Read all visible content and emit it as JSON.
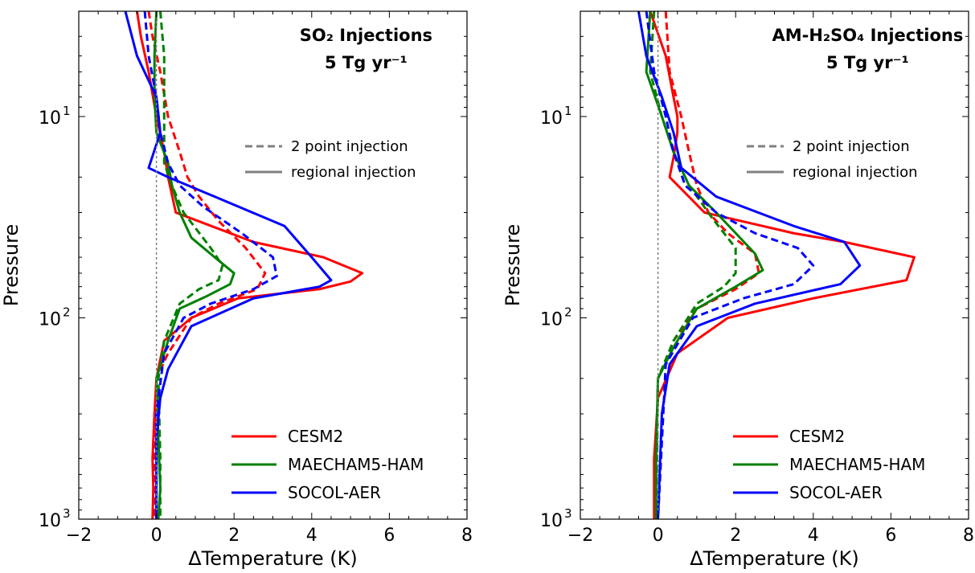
{
  "chart_data": [
    {
      "type": "line",
      "title_line1": "SO₂ Injections",
      "title_line2": "5 Tg yr⁻¹",
      "xlabel": "ΔTemperature (K)",
      "ylabel": "Pressure",
      "xlim": [
        -2,
        8
      ],
      "ylim": [
        1000,
        3
      ],
      "yscale": "log",
      "xticks": [
        -2,
        0,
        2,
        4,
        6,
        8
      ],
      "xtick_labels": [
        "−2",
        "0",
        "2",
        "4",
        "6",
        "8"
      ],
      "ytick_labels": [
        {
          "value": 10,
          "base": "10",
          "exp": "1"
        },
        {
          "value": 100,
          "base": "10",
          "exp": "2"
        },
        {
          "value": 1000,
          "base": "10",
          "exp": "3"
        }
      ],
      "legend_models": [
        {
          "name": "CESM2",
          "color": "#ff0000"
        },
        {
          "name": "MAECHAM5-HAM",
          "color": "#008000"
        },
        {
          "name": "SOCOL-AER",
          "color": "#0000ff"
        }
      ],
      "legend_styles": [
        {
          "name": "2 point injection",
          "style": "dashed",
          "color": "#808080"
        },
        {
          "name": "regional injection",
          "style": "solid",
          "color": "#808080"
        }
      ],
      "series": [
        {
          "model": "CESM2",
          "injection": "regional",
          "color": "#ff0000",
          "style": "solid",
          "x": [
            -0.5,
            -0.4,
            -0.2,
            0.0,
            0.2,
            0.3,
            0.5,
            2.5,
            4.3,
            5.3,
            5.0,
            4.2,
            2.1,
            0.9,
            0.2,
            0.0,
            -0.05,
            -0.1,
            -0.08,
            -0.1
          ],
          "p": [
            3,
            4,
            6,
            10,
            15,
            20,
            30,
            42,
            50,
            60,
            66,
            72,
            80,
            100,
            130,
            200,
            300,
            500,
            700,
            1000
          ]
        },
        {
          "model": "CESM2",
          "injection": "2 point",
          "color": "#ff0000",
          "style": "dashed",
          "x": [
            -0.2,
            -0.1,
            0.1,
            0.3,
            0.6,
            0.8,
            1.1,
            1.6,
            2.3,
            2.8,
            2.6,
            1.6,
            0.9,
            0.3,
            0.0,
            -0.05,
            -0.05
          ],
          "p": [
            3,
            4,
            6,
            10,
            15,
            20,
            25,
            33,
            45,
            60,
            72,
            85,
            100,
            150,
            200,
            500,
            1000
          ]
        },
        {
          "model": "MAECHAM5-HAM",
          "injection": "regional",
          "color": "#008000",
          "style": "solid",
          "x": [
            0.0,
            -0.05,
            -0.05,
            0.0,
            0.3,
            0.4,
            0.6,
            0.9,
            1.5,
            2.0,
            1.9,
            1.3,
            0.6,
            0.3,
            0.0,
            0.05,
            0.1,
            0.05
          ],
          "p": [
            3,
            5,
            8,
            12,
            17,
            22,
            30,
            40,
            50,
            60,
            68,
            78,
            90,
            130,
            200,
            400,
            700,
            1000
          ]
        },
        {
          "model": "MAECHAM5-HAM",
          "injection": "2 point",
          "color": "#008000",
          "style": "dashed",
          "x": [
            0.1,
            0.2,
            0.2,
            0.2,
            0.2,
            0.4,
            0.7,
            1.4,
            1.7,
            1.6,
            1.1,
            0.6,
            0.2,
            0.05,
            0.1,
            0.1
          ],
          "p": [
            3,
            5,
            8,
            12,
            17,
            22,
            30,
            45,
            55,
            65,
            72,
            85,
            130,
            200,
            500,
            1000
          ]
        },
        {
          "model": "SOCOL-AER",
          "injection": "regional",
          "color": "#0000ff",
          "style": "solid",
          "x": [
            -0.8,
            -0.5,
            0.0,
            0.1,
            -0.2,
            0.3,
            1.5,
            3.3,
            4.0,
            4.5,
            4.2,
            2.5,
            0.9,
            0.3,
            0.1,
            0.0,
            0.0,
            0.0
          ],
          "p": [
            3,
            5,
            8,
            12,
            18,
            20,
            25,
            35,
            50,
            65,
            70,
            80,
            110,
            180,
            250,
            400,
            700,
            1000
          ]
        },
        {
          "model": "SOCOL-AER",
          "injection": "2 point",
          "color": "#0000ff",
          "style": "dashed",
          "x": [
            -0.3,
            -0.2,
            0.0,
            0.1,
            0.3,
            0.6,
            1.2,
            2.2,
            3.0,
            3.1,
            2.5,
            1.4,
            0.7,
            0.2,
            0.0,
            0.0
          ],
          "p": [
            3,
            5,
            8,
            12,
            17,
            22,
            28,
            38,
            50,
            62,
            72,
            85,
            100,
            150,
            300,
            1000
          ]
        },
        {
          "model": "reference",
          "injection": "zero line",
          "color": "#808080",
          "style": "dotted",
          "x": [
            0,
            0
          ],
          "p": [
            3,
            1000
          ]
        }
      ]
    },
    {
      "type": "line",
      "title_line1": "AM-H₂SO₄ Injections",
      "title_line2": "5 Tg yr⁻¹",
      "xlabel": "ΔTemperature (K)",
      "ylabel": "Pressure",
      "xlim": [
        -2,
        8
      ],
      "ylim": [
        1000,
        3
      ],
      "yscale": "log",
      "xticks": [
        -2,
        0,
        2,
        4,
        6,
        8
      ],
      "xtick_labels": [
        "−2",
        "0",
        "2",
        "4",
        "6",
        "8"
      ],
      "ytick_labels": [
        {
          "value": 10,
          "base": "10",
          "exp": "1"
        },
        {
          "value": 100,
          "base": "10",
          "exp": "2"
        },
        {
          "value": 1000,
          "base": "10",
          "exp": "3"
        }
      ],
      "legend_models": [
        {
          "name": "CESM2",
          "color": "#ff0000"
        },
        {
          "name": "MAECHAM5-HAM",
          "color": "#008000"
        },
        {
          "name": "SOCOL-AER",
          "color": "#0000ff"
        }
      ],
      "legend_styles": [
        {
          "name": "2 point injection",
          "style": "dashed",
          "color": "#808080"
        },
        {
          "name": "regional injection",
          "style": "solid",
          "color": "#808080"
        }
      ],
      "series": [
        {
          "model": "CESM2",
          "injection": "regional",
          "color": "#ff0000",
          "style": "solid",
          "x": [
            -0.2,
            0.2,
            0.4,
            0.5,
            0.5,
            0.4,
            0.3,
            1.2,
            3.5,
            4.8,
            6.6,
            6.4,
            4.0,
            1.8,
            0.5,
            0.0,
            -0.1,
            -0.1
          ],
          "p": [
            3,
            5,
            8,
            10,
            12,
            16,
            20,
            30,
            38,
            42,
            50,
            65,
            80,
            100,
            150,
            250,
            500,
            1000
          ]
        },
        {
          "model": "CESM2",
          "injection": "2 point",
          "color": "#ff0000",
          "style": "dashed",
          "x": [
            0.2,
            0.3,
            0.6,
            0.8,
            1.0,
            1.3,
            1.8,
            2.5,
            2.6,
            2.0,
            1.0,
            0.4,
            0.0,
            -0.05
          ],
          "p": [
            3,
            6,
            10,
            15,
            22,
            30,
            38,
            48,
            60,
            72,
            90,
            130,
            200,
            1000
          ]
        },
        {
          "model": "MAECHAM5-HAM",
          "injection": "regional",
          "color": "#008000",
          "style": "solid",
          "x": [
            -0.2,
            -0.3,
            0.1,
            0.4,
            0.8,
            1.5,
            2.5,
            2.7,
            2.0,
            1.0,
            0.4,
            0.0,
            -0.05,
            -0.05
          ],
          "p": [
            3,
            6,
            10,
            15,
            22,
            30,
            48,
            58,
            70,
            90,
            140,
            200,
            500,
            1000
          ]
        },
        {
          "model": "MAECHAM5-HAM",
          "injection": "2 point",
          "color": "#008000",
          "style": "dashed",
          "x": [
            -0.1,
            -0.2,
            0.1,
            0.4,
            0.8,
            1.4,
            2.0,
            2.0,
            1.7,
            1.0,
            0.4,
            0.0,
            -0.05
          ],
          "p": [
            3,
            6,
            10,
            15,
            22,
            32,
            45,
            60,
            70,
            85,
            130,
            200,
            1000
          ]
        },
        {
          "model": "SOCOL-AER",
          "injection": "regional",
          "color": "#0000ff",
          "style": "solid",
          "x": [
            -0.5,
            -0.3,
            0.1,
            0.4,
            0.6,
            1.5,
            3.5,
            4.8,
            5.2,
            4.7,
            2.5,
            1.0,
            0.3,
            0.1,
            0.0
          ],
          "p": [
            3,
            5,
            8,
            12,
            18,
            25,
            35,
            42,
            55,
            68,
            85,
            110,
            170,
            300,
            1000
          ]
        },
        {
          "model": "SOCOL-AER",
          "injection": "2 point",
          "color": "#0000ff",
          "style": "dashed",
          "x": [
            -0.3,
            -0.1,
            0.2,
            0.4,
            0.7,
            1.5,
            2.5,
            3.6,
            4.0,
            3.5,
            2.2,
            0.9,
            0.2,
            0.0
          ],
          "p": [
            3,
            6,
            10,
            15,
            22,
            30,
            38,
            45,
            55,
            68,
            80,
            100,
            170,
            1000
          ]
        },
        {
          "model": "reference",
          "injection": "zero line",
          "color": "#808080",
          "style": "dotted",
          "x": [
            0,
            0
          ],
          "p": [
            3,
            1000
          ]
        }
      ]
    }
  ]
}
